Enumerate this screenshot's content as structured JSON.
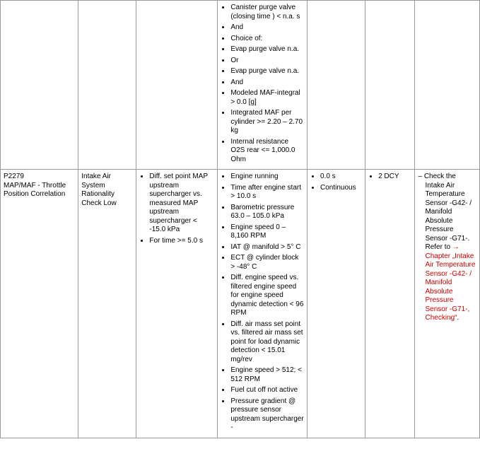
{
  "row1": {
    "col4_items": [
      "Canister purge valve (closing time ) < n.a. s",
      "And",
      "Choice of:",
      "Evap purge valve n.a.",
      "Or",
      "Evap purge valve n.a.",
      "And",
      "Modeled MAF-integral > 0.0 [g]",
      "Integrated MAF per cylinder >= 2.20 – 2.70 kg",
      "Internal resistance O2S rear <= 1,000.0 Ohm"
    ]
  },
  "row2": {
    "code": "P2279",
    "code_name": "MAP/MAF - Throttle Position Correlation",
    "fault_type": "Intake Air System Rationality Check Low",
    "col3_items": [
      "Diff. set point MAP upstream supercharger vs. measured MAP upstream supercharger < -15.0 kPa",
      "For time >= 5.0 s"
    ],
    "col4_items": [
      "Engine running",
      "Time after engine start > 10.0 s",
      "Barometric pressure 63.0 – 105.0 kPa",
      "Engine speed 0 – 8,160 RPM",
      "IAT @ manifold > 5° C",
      "ECT @ cylinder block > -48° C",
      "Diff. engine speed vs. filtered engine speed for engine speed dynamic detection < 96 RPM",
      "Diff. air mass set point vs. filtered air mass set point for load dynamic detection < 15.01 mg/rev",
      "Engine speed > 512; < 512 RPM",
      "Fuel cut off not active",
      "Pressure gradient @ pressure sensor upstream supercharger -"
    ],
    "col5_items": [
      "0.0 s",
      "Continuous"
    ],
    "col6_items": [
      "2 DCY"
    ],
    "col7_check": "Check the Intake Air Temperature Sensor -G42- / Manifold Absolute Pressure Sensor -G71-. Refer to",
    "col7_link": "→ Chapter „Intake Air Temperature Sensor -G42- / Manifold Absolute Pressure Sensor -G71-, Checking“",
    "col7_tail": "."
  }
}
